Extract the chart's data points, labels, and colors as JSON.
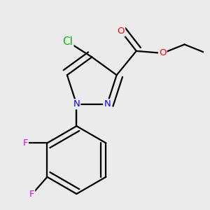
{
  "bg_color": "#ebebeb",
  "bond_color": "#000000",
  "bond_width": 1.6,
  "atom_colors": {
    "Cl": "#00bb00",
    "N": "#0000ff",
    "O": "#ff0000",
    "F": "#ee00ee",
    "C": "#000000"
  },
  "font_size": 9.5,
  "fig_size": [
    3.0,
    3.0
  ],
  "dpi": 100
}
